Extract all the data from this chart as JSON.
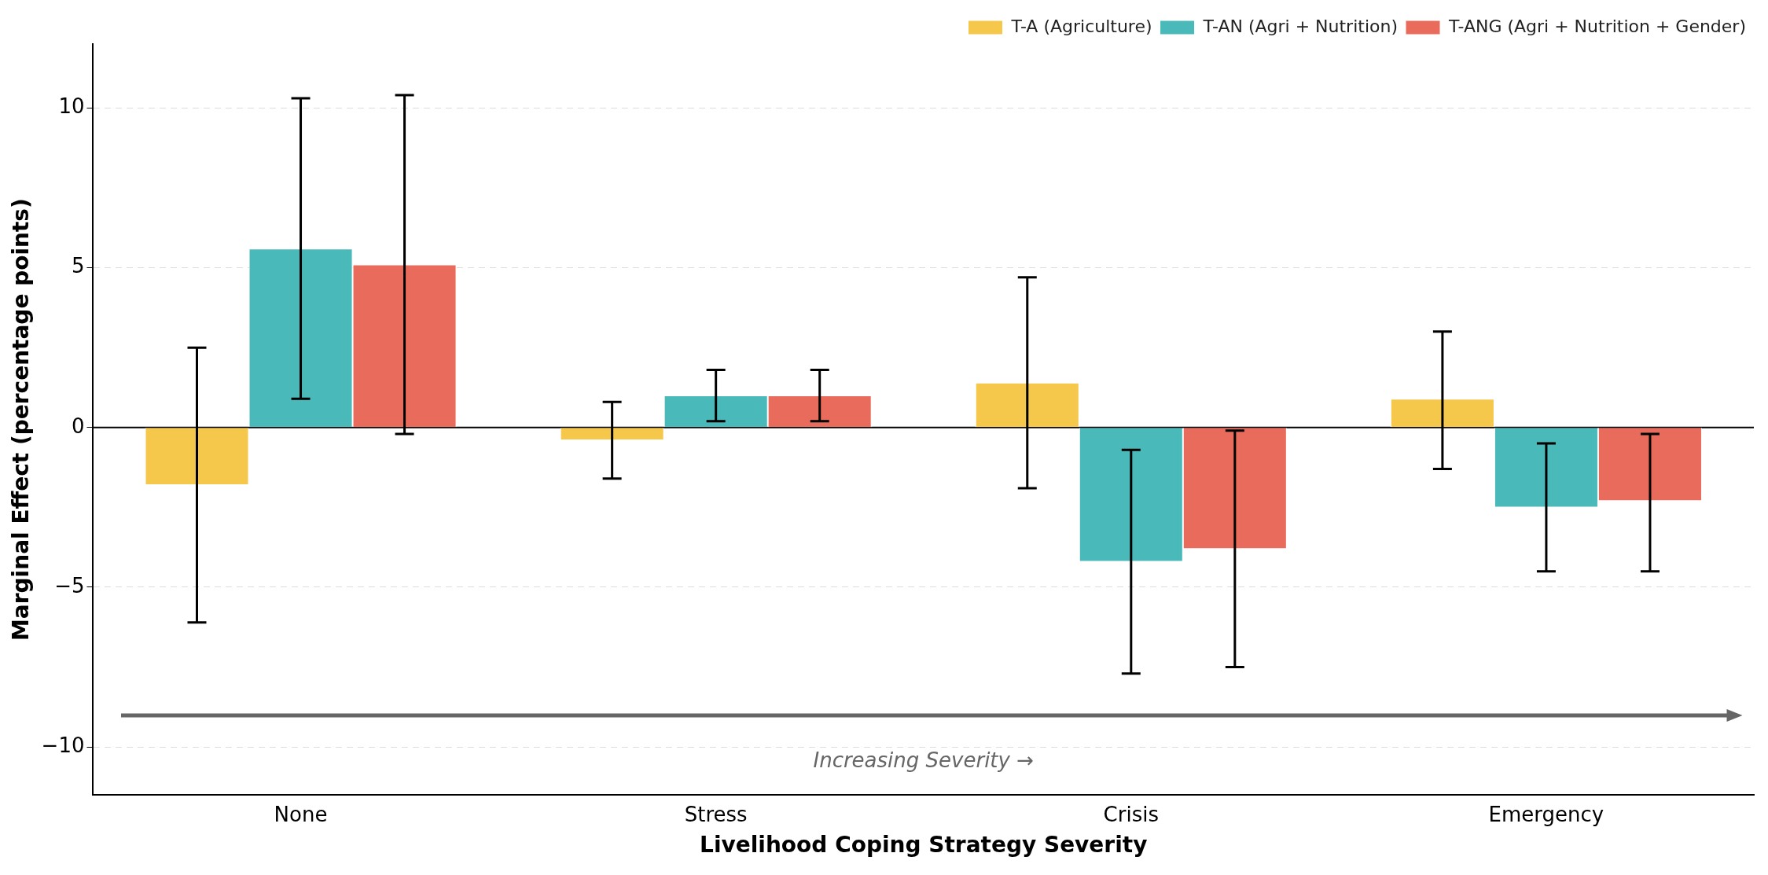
{
  "chart_data": {
    "type": "bar",
    "xlabel": "Livelihood Coping Strategy Severity",
    "ylabel": "Marginal Effect (percentage points)",
    "categories": [
      "None",
      "Stress",
      "Crisis",
      "Emergency"
    ],
    "series": [
      {
        "name": "T-A (Agriculture)",
        "color": "#f5c84c",
        "values": [
          -1.8,
          -0.4,
          1.4,
          0.9
        ],
        "errors": [
          [
            -6.1,
            2.5
          ],
          [
            -1.6,
            0.8
          ],
          [
            -1.9,
            4.7
          ],
          [
            -1.3,
            3.0
          ]
        ]
      },
      {
        "name": "T-AN (Agri + Nutrition)",
        "color": "#4ab9b9",
        "values": [
          5.6,
          1.0,
          -4.2,
          -2.5
        ],
        "errors": [
          [
            0.9,
            10.3
          ],
          [
            0.2,
            1.8
          ],
          [
            -7.7,
            -0.7
          ],
          [
            -4.5,
            -0.5
          ]
        ]
      },
      {
        "name": "T-ANG (Agri + Nutrition + Gender)",
        "color": "#e96b5b",
        "values": [
          5.1,
          1.0,
          -3.8,
          -2.3
        ],
        "errors": [
          [
            -0.2,
            10.4
          ],
          [
            0.2,
            1.8
          ],
          [
            -7.5,
            -0.1
          ],
          [
            -4.5,
            -0.2
          ]
        ]
      }
    ],
    "ylim": [
      -11.5,
      12
    ],
    "yticks": [
      {
        "value": -10,
        "label": "−10"
      },
      {
        "value": -5,
        "label": "−5"
      },
      0,
      5,
      10
    ],
    "grid": "y",
    "legend": "top right",
    "ref_lines": [
      {
        "axis": "y",
        "value": 0,
        "color": "#000000"
      }
    ],
    "annotations": [
      "Increasing Severity →"
    ]
  }
}
